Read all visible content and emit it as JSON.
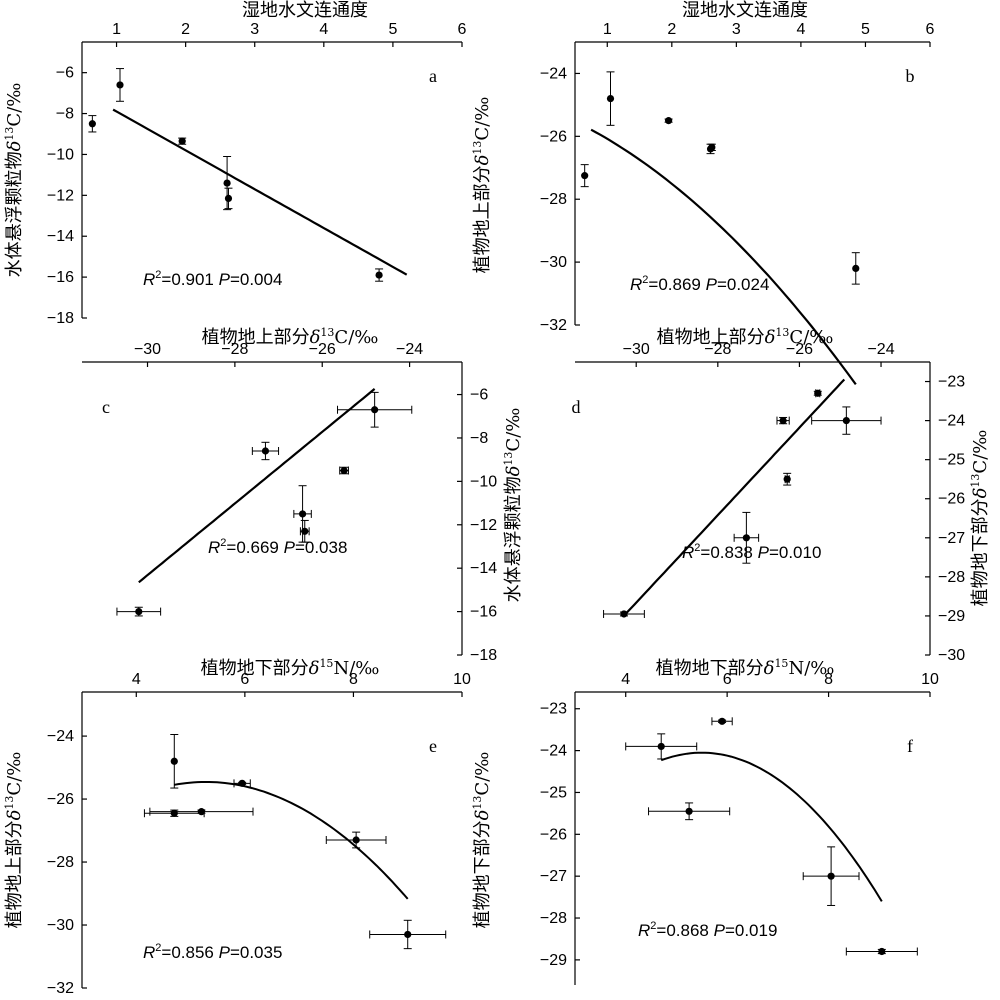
{
  "chart_data": [
    {
      "panel": "a",
      "type": "scatter",
      "xlabel": "湿地水文连通度",
      "ylabel": "水体悬浮颗粒物δ13C/‰",
      "xlim": [
        0.5,
        6
      ],
      "ylim": [
        -18,
        -4.5
      ],
      "xticks": [
        "1",
        "2",
        "3",
        "4",
        "5",
        "6"
      ],
      "yticks": [
        "-6",
        "-8",
        "-10",
        "-12",
        "-14",
        "-16",
        "-18"
      ],
      "points": [
        {
          "x": 0.65,
          "y": -8.5,
          "yerr": 0.4
        },
        {
          "x": 1.05,
          "y": -6.6,
          "yerr": 0.8
        },
        {
          "x": 1.95,
          "y": -9.35,
          "yerr": 0.15
        },
        {
          "x": 2.6,
          "y": -11.4,
          "yerr": 1.3
        },
        {
          "x": 2.62,
          "y": -12.15,
          "yerr": 0.5
        },
        {
          "x": 4.8,
          "y": -15.9,
          "yerr": 0.3
        }
      ],
      "fit": {
        "kind": "linear",
        "x_range": [
          0.95,
          5.2
        ],
        "coef": [
          -6.0,
          -1.9
        ]
      },
      "stat": {
        "r2": "=0.901",
        "p": "=0.004"
      }
    },
    {
      "panel": "b",
      "type": "scatter",
      "xlabel": "湿地水文连通度",
      "ylabel": "植物地上部分δ13C/‰",
      "xlim": [
        0.5,
        6
      ],
      "ylim": [
        -32,
        -23
      ],
      "xticks": [
        "1",
        "2",
        "3",
        "4",
        "5",
        "6"
      ],
      "yticks": [
        "-24",
        "-26",
        "-28",
        "-30",
        "-32"
      ],
      "points": [
        {
          "x": 0.65,
          "y": -27.25,
          "yerr": 0.35
        },
        {
          "x": 1.05,
          "y": -24.8,
          "yerr": 0.85
        },
        {
          "x": 1.95,
          "y": -25.5,
          "yerr": 0.05
        },
        {
          "x": 2.6,
          "y": -26.4,
          "yerr": 0.15
        },
        {
          "x": 2.62,
          "y": -26.35,
          "yerr": 0.1
        },
        {
          "x": 4.85,
          "y": -30.2,
          "yerr": 0.5
        }
      ],
      "fit": {
        "kind": "quadratic",
        "x_range": [
          0.75,
          4.85
        ],
        "coef": [
          -25.07,
          -0.8,
          -0.21
        ]
      },
      "stat": {
        "r2": "=0.869",
        "p": "=0.024"
      }
    },
    {
      "panel": "c",
      "type": "scatter",
      "xlabel": "植物地上部分δ13C/‰",
      "ylabel": "水体悬浮颗粒物δ13C/‰",
      "xlim": [
        -31.5,
        -22.8
      ],
      "ylim": [
        -18,
        -4.5
      ],
      "xticks": [
        "-30",
        "-28",
        "-26",
        "-24"
      ],
      "yticks": [
        "-6",
        "-8",
        "-10",
        "-12",
        "-14",
        "-16",
        "-18"
      ],
      "points": [
        {
          "x": -30.2,
          "y": -16.0,
          "xerr": 0.5,
          "yerr": 0.2
        },
        {
          "x": -27.3,
          "y": -8.6,
          "xerr": 0.3,
          "yerr": 0.4
        },
        {
          "x": -26.45,
          "y": -11.5,
          "xerr": 0.2,
          "yerr": 1.3
        },
        {
          "x": -26.4,
          "y": -12.3,
          "xerr": 0.1,
          "yerr": 0.5
        },
        {
          "x": -25.5,
          "y": -9.5,
          "xerr": 0.1,
          "yerr": 0.15
        },
        {
          "x": -24.8,
          "y": -6.7,
          "xerr": 0.85,
          "yerr": 0.8
        }
      ],
      "fit": {
        "kind": "linear",
        "x_range": [
          -30.2,
          -24.8
        ],
        "coef": [
          35.18,
          1.65
        ]
      },
      "stat": {
        "r2": "=0.669",
        "p": "=0.038"
      }
    },
    {
      "panel": "d",
      "type": "scatter",
      "xlabel": "植物地上部分δ13C/‰",
      "ylabel": "植物地下部分δ13C/‰",
      "xlim": [
        -31.5,
        -22.8
      ],
      "ylim": [
        -30,
        -22.5
      ],
      "xticks": [
        "-30",
        "-28",
        "-26",
        "-24"
      ],
      "yticks": [
        "-23",
        "-24",
        "-25",
        "-26",
        "-27",
        "-28",
        "-29",
        "-30"
      ],
      "points": [
        {
          "x": -30.3,
          "y": -28.95,
          "xerr": 0.5,
          "yerr": 0.05
        },
        {
          "x": -27.3,
          "y": -27.0,
          "xerr": 0.3,
          "yerr": 0.65
        },
        {
          "x": -26.4,
          "y": -24.0,
          "xerr": 0.15,
          "yerr": 0.08
        },
        {
          "x": -26.3,
          "y": -25.5,
          "xerr": 0.05,
          "yerr": 0.15
        },
        {
          "x": -25.55,
          "y": -23.3,
          "xerr": 0.05,
          "yerr": 0.05
        },
        {
          "x": -24.85,
          "y": -24.0,
          "xerr": 0.85,
          "yerr": 0.35
        }
      ],
      "fit": {
        "kind": "linear",
        "x_range": [
          -30.3,
          -24.9
        ],
        "coef": [
          4.94,
          1.12
        ]
      },
      "stat": {
        "r2": "=0.838",
        "p": "=0.010"
      }
    },
    {
      "panel": "e",
      "type": "scatter",
      "xlabel": "植物地下部分δ15N/‰",
      "ylabel": "植物地上部分δ13C/‰",
      "xlim": [
        3,
        10
      ],
      "ylim": [
        -32,
        -22.6
      ],
      "xticks": [
        "4",
        "6",
        "8",
        "10"
      ],
      "yticks": [
        "-24",
        "-26",
        "-28",
        "-30",
        "-32"
      ],
      "points": [
        {
          "x": 4.7,
          "y": -24.8,
          "yerr": 0.85
        },
        {
          "x": 4.7,
          "y": -26.45,
          "xerr": 0.55,
          "yerr": 0.1
        },
        {
          "x": 5.2,
          "y": -26.4,
          "xerr": 0.95,
          "yerr": 0.05
        },
        {
          "x": 5.95,
          "y": -25.5,
          "xerr": 0.15,
          "yerr": 0.03
        },
        {
          "x": 8.05,
          "y": -27.3,
          "xerr": 0.55,
          "yerr": 0.25
        },
        {
          "x": 9.0,
          "y": -30.3,
          "xerr": 0.7,
          "yerr": 0.45
        }
      ],
      "fit": {
        "kind": "quadratic",
        "x_range": [
          4.7,
          9.0
        ],
        "coef": [
          -25.53,
          -0.28,
          -0.268
        ],
        "center": 5.8
      },
      "stat": {
        "r2": "=0.856",
        "p": "=0.035"
      }
    },
    {
      "panel": "f",
      "type": "scatter",
      "xlabel": "植物地下部分δ15N/‰",
      "ylabel": "植物地下部分δ13C/‰",
      "xlim": [
        3,
        10
      ],
      "ylim": [
        -29.6,
        -22.6
      ],
      "xticks": [
        "4",
        "6",
        "8",
        "10"
      ],
      "yticks": [
        "-23",
        "-24",
        "-25",
        "-26",
        "-27",
        "-28",
        "-29"
      ],
      "points": [
        {
          "x": 4.7,
          "y": -23.9,
          "xerr": 0.7,
          "yerr": 0.3
        },
        {
          "x": 5.25,
          "y": -25.45,
          "xerr": 0.8,
          "yerr": 0.2
        },
        {
          "x": 5.9,
          "y": -23.3,
          "xerr": 0.2,
          "yerr": 0.03
        },
        {
          "x": 8.05,
          "y": -27.0,
          "xerr": 0.55,
          "yerr": 0.7
        },
        {
          "x": 9.05,
          "y": -28.8,
          "xerr": 0.7,
          "yerr": 0.05
        }
      ],
      "fit": {
        "kind": "quadratic",
        "x_range": [
          4.7,
          9.05
        ],
        "coef": [
          -24.05,
          -0.0,
          -0.282
        ],
        "center": 5.5
      },
      "stat": {
        "r2": "=0.868",
        "p": "=0.019"
      }
    }
  ]
}
